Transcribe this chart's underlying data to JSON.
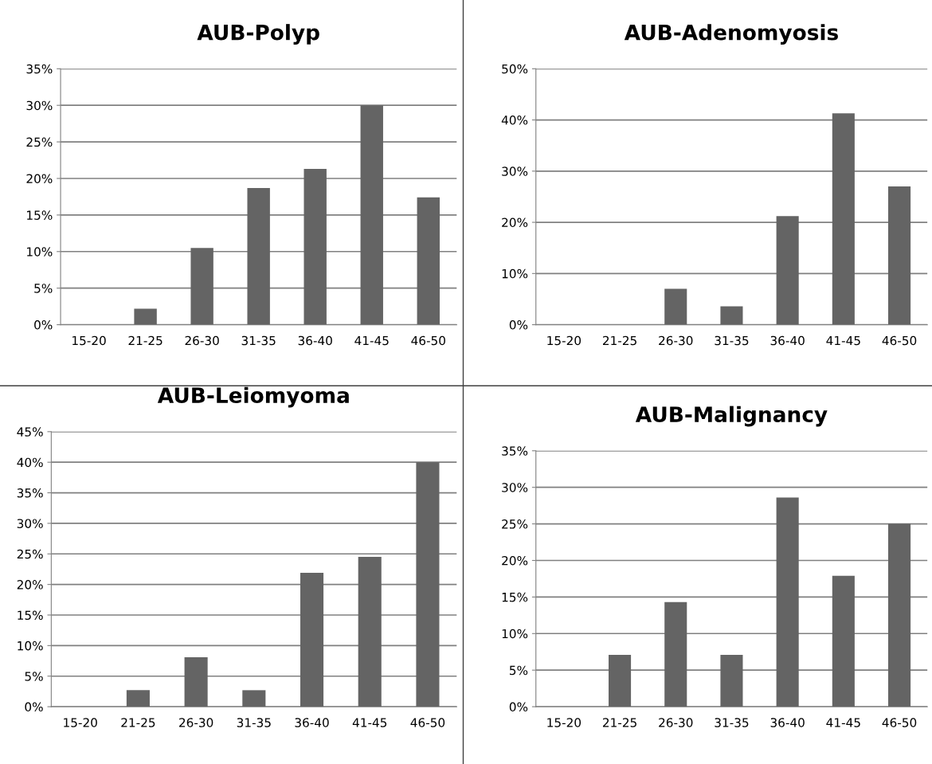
{
  "chart_data": [
    {
      "type": "bar",
      "title": "AUB-Polyp",
      "categories": [
        "15-20",
        "21-25",
        "26-30",
        "31-35",
        "36-40",
        "41-45",
        "46-50"
      ],
      "values": [
        0,
        2.2,
        10.5,
        18.7,
        21.3,
        30,
        17.4
      ],
      "color": "#646464",
      "ylim": [
        0,
        35
      ],
      "yticks": [
        {
          "value": 0,
          "label": "0%"
        },
        {
          "value": 5,
          "label": "5%"
        },
        {
          "value": 10,
          "label": "10%"
        },
        {
          "value": 15,
          "label": "15%"
        },
        {
          "value": 20,
          "label": "20%"
        },
        {
          "value": 25,
          "label": "25%"
        },
        {
          "value": 30,
          "label": "30%"
        },
        {
          "value": 35,
          "label": "35%"
        }
      ],
      "grid": "y",
      "legend": false
    },
    {
      "type": "bar",
      "title": "AUB-Adenomyosis",
      "categories": [
        "15-20",
        "21-25",
        "26-30",
        "31-35",
        "36-40",
        "41-45",
        "46-50"
      ],
      "values": [
        0,
        0,
        7,
        3.6,
        21.2,
        41.3,
        27
      ],
      "color": "#646464",
      "ylim": [
        0,
        50
      ],
      "yticks": [
        {
          "value": 0,
          "label": "0%"
        },
        {
          "value": 10,
          "label": "10%"
        },
        {
          "value": 20,
          "label": "20%"
        },
        {
          "value": 30,
          "label": "30%"
        },
        {
          "value": 40,
          "label": "40%"
        },
        {
          "value": 50,
          "label": "50%"
        }
      ],
      "grid": "y",
      "legend": false
    },
    {
      "type": "bar",
      "title": "AUB-Leiomyoma",
      "categories": [
        "15-20",
        "21-25",
        "26-30",
        "31-35",
        "36-40",
        "41-45",
        "46-50"
      ],
      "values": [
        0,
        2.7,
        8.1,
        2.7,
        21.9,
        24.5,
        40
      ],
      "color": "#646464",
      "ylim": [
        0,
        45
      ],
      "yticks": [
        {
          "value": 0,
          "label": "0%"
        },
        {
          "value": 5,
          "label": "5%"
        },
        {
          "value": 10,
          "label": "10%"
        },
        {
          "value": 15,
          "label": "15%"
        },
        {
          "value": 20,
          "label": "20%"
        },
        {
          "value": 25,
          "label": "25%"
        },
        {
          "value": 30,
          "label": "30%"
        },
        {
          "value": 35,
          "label": "35%"
        },
        {
          "value": 40,
          "label": "40%"
        },
        {
          "value": 45,
          "label": "45%"
        }
      ],
      "grid": "y",
      "legend": false
    },
    {
      "type": "bar",
      "title": "AUB-Malignancy",
      "categories": [
        "15-20",
        "21-25",
        "26-30",
        "31-35",
        "36-40",
        "41-45",
        "46-50"
      ],
      "values": [
        0,
        7.1,
        14.3,
        7.1,
        28.6,
        17.9,
        25
      ],
      "color": "#646464",
      "ylim": [
        0,
        35
      ],
      "yticks": [
        {
          "value": 0,
          "label": "0%"
        },
        {
          "value": 5,
          "label": "5%"
        },
        {
          "value": 10,
          "label": "10%"
        },
        {
          "value": 15,
          "label": "15%"
        },
        {
          "value": 20,
          "label": "20%"
        },
        {
          "value": 25,
          "label": "25%"
        },
        {
          "value": 30,
          "label": "30%"
        },
        {
          "value": 35,
          "label": "35%"
        }
      ],
      "grid": "y",
      "legend": false
    }
  ]
}
